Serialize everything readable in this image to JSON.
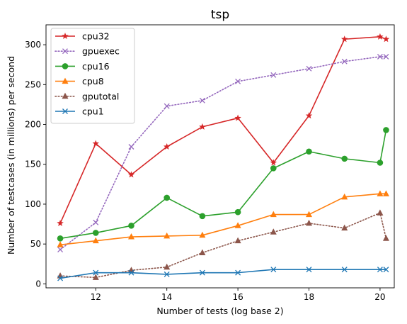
{
  "chart_data": {
    "type": "line",
    "title": "tsp",
    "xlabel": "Number of tests (log base 2)",
    "ylabel": "Number of testcases (in millions) per second",
    "xlim": [
      10.6,
      20.4
    ],
    "ylim": [
      -5,
      325
    ],
    "xticks": [
      12,
      14,
      16,
      18,
      20
    ],
    "yticks": [
      0,
      50,
      100,
      150,
      200,
      250,
      300
    ],
    "legend_position": "top-left",
    "grid": false,
    "series": [
      {
        "name": "cpu32",
        "color": "#d62728",
        "marker": "star",
        "line": "solid",
        "x": [
          11,
          12,
          13,
          14,
          15,
          16,
          17,
          18,
          19,
          20,
          20.17
        ],
        "y": [
          76,
          176,
          137,
          172,
          197,
          208,
          152,
          211,
          307,
          310,
          307
        ]
      },
      {
        "name": "gpuexec",
        "color": "#9467bd",
        "marker": "x",
        "line": "dotted",
        "x": [
          11,
          12,
          13,
          14,
          15,
          16,
          17,
          18,
          19,
          20,
          20.17
        ],
        "y": [
          43,
          77,
          172,
          223,
          230,
          254,
          262,
          270,
          279,
          285,
          285
        ]
      },
      {
        "name": "cpu16",
        "color": "#2ca02c",
        "marker": "circle",
        "line": "solid",
        "x": [
          11,
          12,
          13,
          14,
          15,
          16,
          17,
          18,
          19,
          20,
          20.17
        ],
        "y": [
          57,
          64,
          73,
          108,
          85,
          90,
          145,
          166,
          157,
          152,
          193
        ]
      },
      {
        "name": "cpu8",
        "color": "#ff7f0e",
        "marker": "triangle",
        "line": "solid",
        "x": [
          11,
          12,
          13,
          14,
          15,
          16,
          17,
          18,
          19,
          20,
          20.17
        ],
        "y": [
          49,
          54,
          59,
          60,
          61,
          73,
          87,
          87,
          109,
          113,
          113
        ]
      },
      {
        "name": "gputotal",
        "color": "#8c564b",
        "marker": "triangle",
        "line": "dotted",
        "x": [
          11,
          12,
          13,
          14,
          15,
          16,
          17,
          18,
          19,
          20,
          20.17
        ],
        "y": [
          10,
          8,
          17,
          21,
          39,
          54,
          65,
          76,
          70,
          89,
          57
        ]
      },
      {
        "name": "cpu1",
        "color": "#1f77b4",
        "marker": "x",
        "line": "solid",
        "x": [
          11,
          12,
          13,
          14,
          15,
          16,
          17,
          18,
          19,
          20,
          20.17
        ],
        "y": [
          7,
          14,
          14,
          12,
          14,
          14,
          18,
          18,
          18,
          18,
          18
        ]
      }
    ]
  }
}
